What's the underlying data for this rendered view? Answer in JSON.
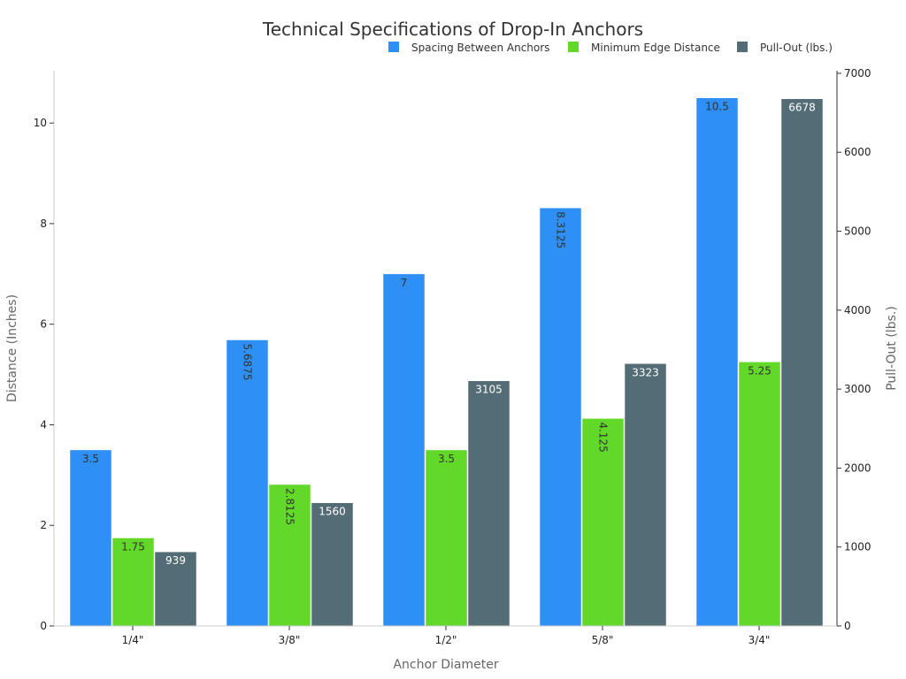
{
  "chart_data": {
    "type": "bar",
    "title": "Technical Specifications of Drop-In Anchors",
    "xlabel": "Anchor Diameter",
    "ylabel": "Distance (Inches)",
    "y2label": "Pull-Out (lbs.)",
    "categories": [
      "1/4\"",
      "3/8\"",
      "1/2\"",
      "5/8\"",
      "3/4\""
    ],
    "series": [
      {
        "name": "Spacing Between Anchors",
        "axis": "left",
        "color": "#2e8ff5",
        "values": [
          3.5,
          5.6875,
          7,
          8.3125,
          10.5
        ],
        "labels": [
          "3.5",
          "5.6875",
          "7",
          "8.3125",
          "10.5"
        ]
      },
      {
        "name": "Minimum Edge Distance",
        "axis": "left",
        "color": "#62d929",
        "values": [
          1.75,
          2.8125,
          3.5,
          4.125,
          5.25
        ],
        "labels": [
          "1.75",
          "2.8125",
          "3.5",
          "4.125",
          "5.25"
        ]
      },
      {
        "name": "Pull-Out (lbs.)",
        "axis": "right",
        "color": "#546c75",
        "values": [
          939,
          1560,
          3105,
          3323,
          6678
        ],
        "labels": [
          "939",
          "1560",
          "3105",
          "3323",
          "6678"
        ]
      }
    ],
    "ylim": [
      0,
      11.04
    ],
    "y2lim": [
      0,
      7033
    ],
    "yticks": [
      "0",
      "2",
      "4",
      "6",
      "8",
      "10"
    ],
    "y2ticks": [
      "0",
      "1000",
      "2000",
      "3000",
      "4000",
      "5000",
      "6000",
      "7000"
    ],
    "grid": false,
    "legend_position": "top-right"
  }
}
